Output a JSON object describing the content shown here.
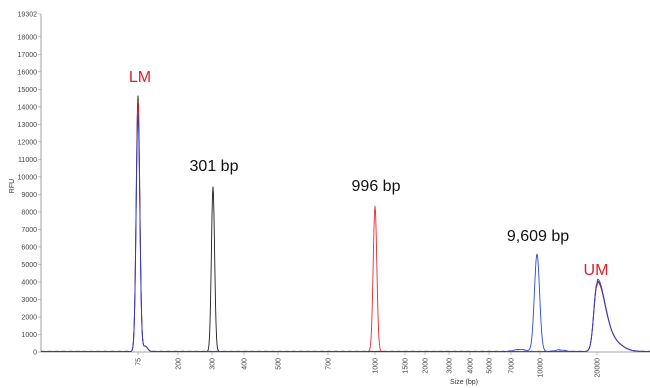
{
  "chart_data": {
    "type": "line",
    "xlabel": "Size (bp)",
    "ylabel": "RFU",
    "y_max_label": "19302",
    "y_ticks": [
      0,
      1000,
      2000,
      3000,
      4000,
      5000,
      6000,
      7000,
      8000,
      9000,
      10000,
      11000,
      12000,
      13000,
      14000,
      15000,
      16000,
      17000,
      18000,
      19302
    ],
    "x_ticks": [
      "75",
      "200",
      "300",
      "400",
      "500",
      "700",
      "1000",
      "1500",
      "2000",
      "3000",
      "4000",
      "5000",
      "7000",
      "10000",
      "20000"
    ],
    "ylim": [
      0,
      19302
    ],
    "grid": false,
    "series": [
      {
        "color": "#111111",
        "peaks": [
          {
            "size": "75",
            "height": 14600
          },
          {
            "size": "301",
            "height": 9400
          },
          {
            "size": "20000",
            "height": 3750
          }
        ]
      },
      {
        "color": "#e0202a",
        "peaks": [
          {
            "size": "75",
            "height": 14300
          },
          {
            "size": "996",
            "height": 8300
          },
          {
            "size": "20000",
            "height": 3800
          }
        ]
      },
      {
        "color": "#1f3fd6",
        "peaks": [
          {
            "size": "75",
            "height": 13500
          },
          {
            "size": "9609",
            "height": 5550
          },
          {
            "size": "20000",
            "height": 3900
          }
        ]
      }
    ],
    "annotations": [
      {
        "text": "LM",
        "color": "#e0202a"
      },
      {
        "text": "301 bp",
        "color": "#111111"
      },
      {
        "text": "996 bp",
        "color": "#111111"
      },
      {
        "text": "9,609 bp",
        "color": "#111111"
      },
      {
        "text": "UM",
        "color": "#e0202a"
      }
    ]
  }
}
